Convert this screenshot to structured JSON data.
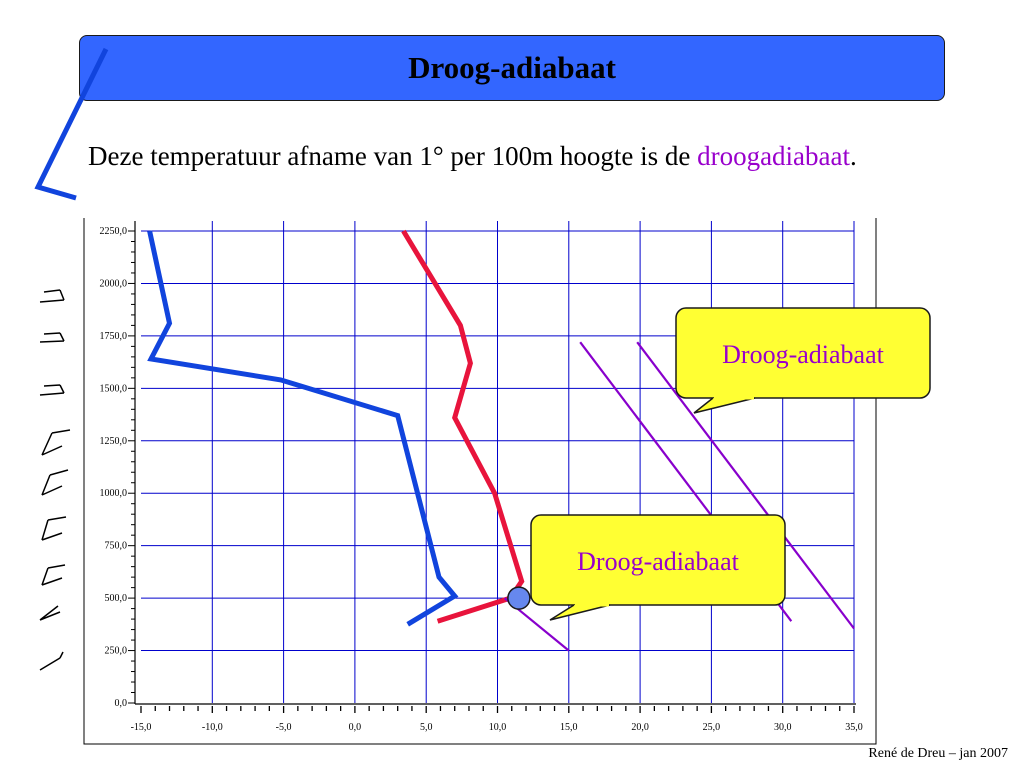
{
  "slide": {
    "title": "Droog-adiabaat",
    "body_prefix": "Deze temperatuur afname van 1° per 100m hoogte is de",
    "body_keyword": "droogadiabaat",
    "body_suffix": ".",
    "credit": "René de Dreu – jan 2007"
  },
  "colors": {
    "title_bg": "#3366ff",
    "grid": "#0000cc",
    "environment_curve": "#1144dd",
    "dewpoint_curve": "#e8143c",
    "adiabat": "#8800cc",
    "callout_bg": "#ffff33",
    "lifting_point": "#6688ee"
  },
  "callouts": [
    {
      "text": "Droog-adiabaat"
    },
    {
      "text": "Droog-adiabaat"
    }
  ],
  "chart_data": {
    "type": "line",
    "title": "",
    "xlabel": "",
    "ylabel": "",
    "xlim": [
      -15,
      35
    ],
    "ylim": [
      0,
      2250
    ],
    "x_ticks": [
      "-15,0",
      "-10,0",
      "-5,0",
      "0,0",
      "5,0",
      "10,0",
      "15,0",
      "20,0",
      "25,0",
      "30,0",
      "35,0"
    ],
    "y_ticks": [
      "0,0",
      "250,0",
      "500,0",
      "750,0",
      "1000,0",
      "1250,0",
      "1500,0",
      "1750,0",
      "2000,0",
      "2250,0"
    ],
    "grid": true,
    "series": [
      {
        "key": "temperature",
        "points": [
          [
            3.7,
            375
          ],
          [
            7.0,
            510
          ],
          [
            5.9,
            600
          ],
          [
            3.0,
            1370
          ],
          [
            -5.2,
            1540
          ],
          [
            -14.3,
            1640
          ],
          [
            -13.0,
            1810
          ],
          [
            -14.4,
            2250
          ]
        ]
      },
      {
        "key": "dewpoint",
        "points": [
          [
            5.8,
            390
          ],
          [
            10.9,
            500
          ],
          [
            11.7,
            580
          ],
          [
            9.8,
            1000
          ],
          [
            7.0,
            1360
          ],
          [
            8.1,
            1620
          ],
          [
            7.4,
            1800
          ],
          [
            3.4,
            2250
          ]
        ]
      },
      {
        "key": "adiabat-1",
        "points": [
          [
            10.5,
            500
          ],
          [
            15.0,
            250
          ]
        ]
      },
      {
        "key": "adiabat-2",
        "points": [
          [
            15.8,
            1720
          ],
          [
            30.6,
            390
          ]
        ]
      },
      {
        "key": "adiabat-3",
        "points": [
          [
            19.8,
            1720
          ],
          [
            35.0,
            355
          ]
        ]
      }
    ],
    "annotations": [
      {
        "type": "lifting-point",
        "x": 11.5,
        "y": 500
      }
    ]
  }
}
